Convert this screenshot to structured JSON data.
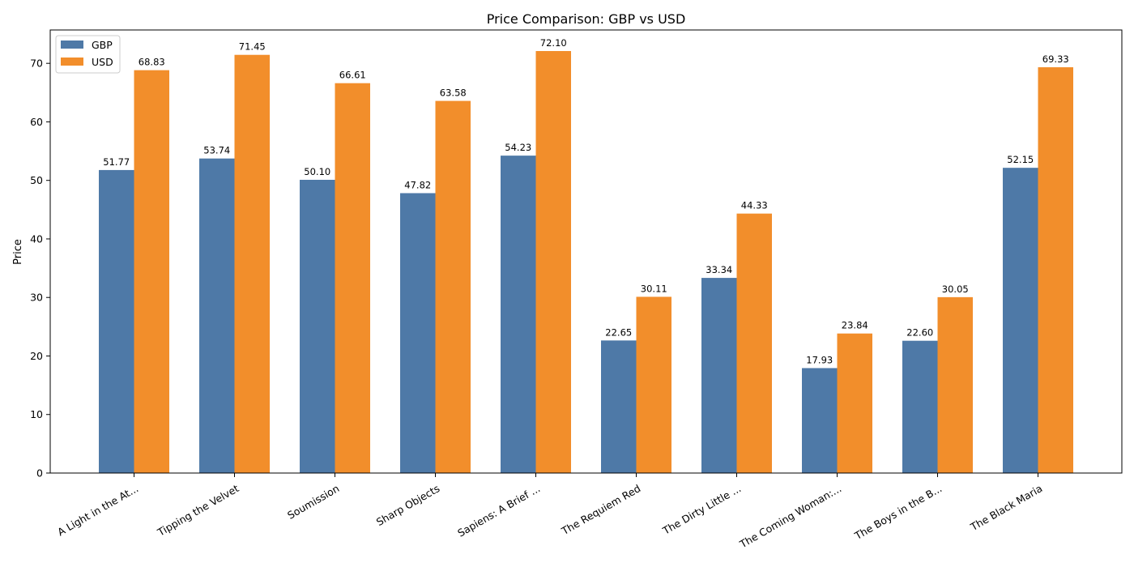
{
  "chart_data": {
    "type": "bar",
    "title": "Price Comparison: GBP vs USD",
    "xlabel": "",
    "ylabel": "Price",
    "ylim": [
      0,
      75.7
    ],
    "yticks": [
      0,
      10,
      20,
      30,
      40,
      50,
      60,
      70
    ],
    "grid": false,
    "legend_position": "top-left",
    "categories": [
      "A Light in the At...",
      "Tipping the Velvet",
      "Soumission",
      "Sharp Objects",
      "Sapiens: A Brief ...",
      "The Requiem Red",
      "The Dirty Little ...",
      "The Coming Woman:...",
      "The Boys in the B...",
      "The Black Maria"
    ],
    "series": [
      {
        "name": "GBP",
        "color": "#4e79a7",
        "values": [
          51.77,
          53.74,
          50.1,
          47.82,
          54.23,
          22.65,
          33.34,
          17.93,
          22.6,
          52.15
        ],
        "labels": [
          "51.77",
          "53.74",
          "50.10",
          "47.82",
          "54.23",
          "22.65",
          "33.34",
          "17.93",
          "22.60",
          "52.15"
        ]
      },
      {
        "name": "USD",
        "color": "#f28e2b",
        "values": [
          68.83,
          71.45,
          66.61,
          63.58,
          72.1,
          30.11,
          44.33,
          23.84,
          30.05,
          69.33
        ],
        "labels": [
          "68.83",
          "71.45",
          "66.61",
          "63.58",
          "72.10",
          "30.11",
          "44.33",
          "23.84",
          "30.05",
          "69.33"
        ]
      }
    ]
  }
}
